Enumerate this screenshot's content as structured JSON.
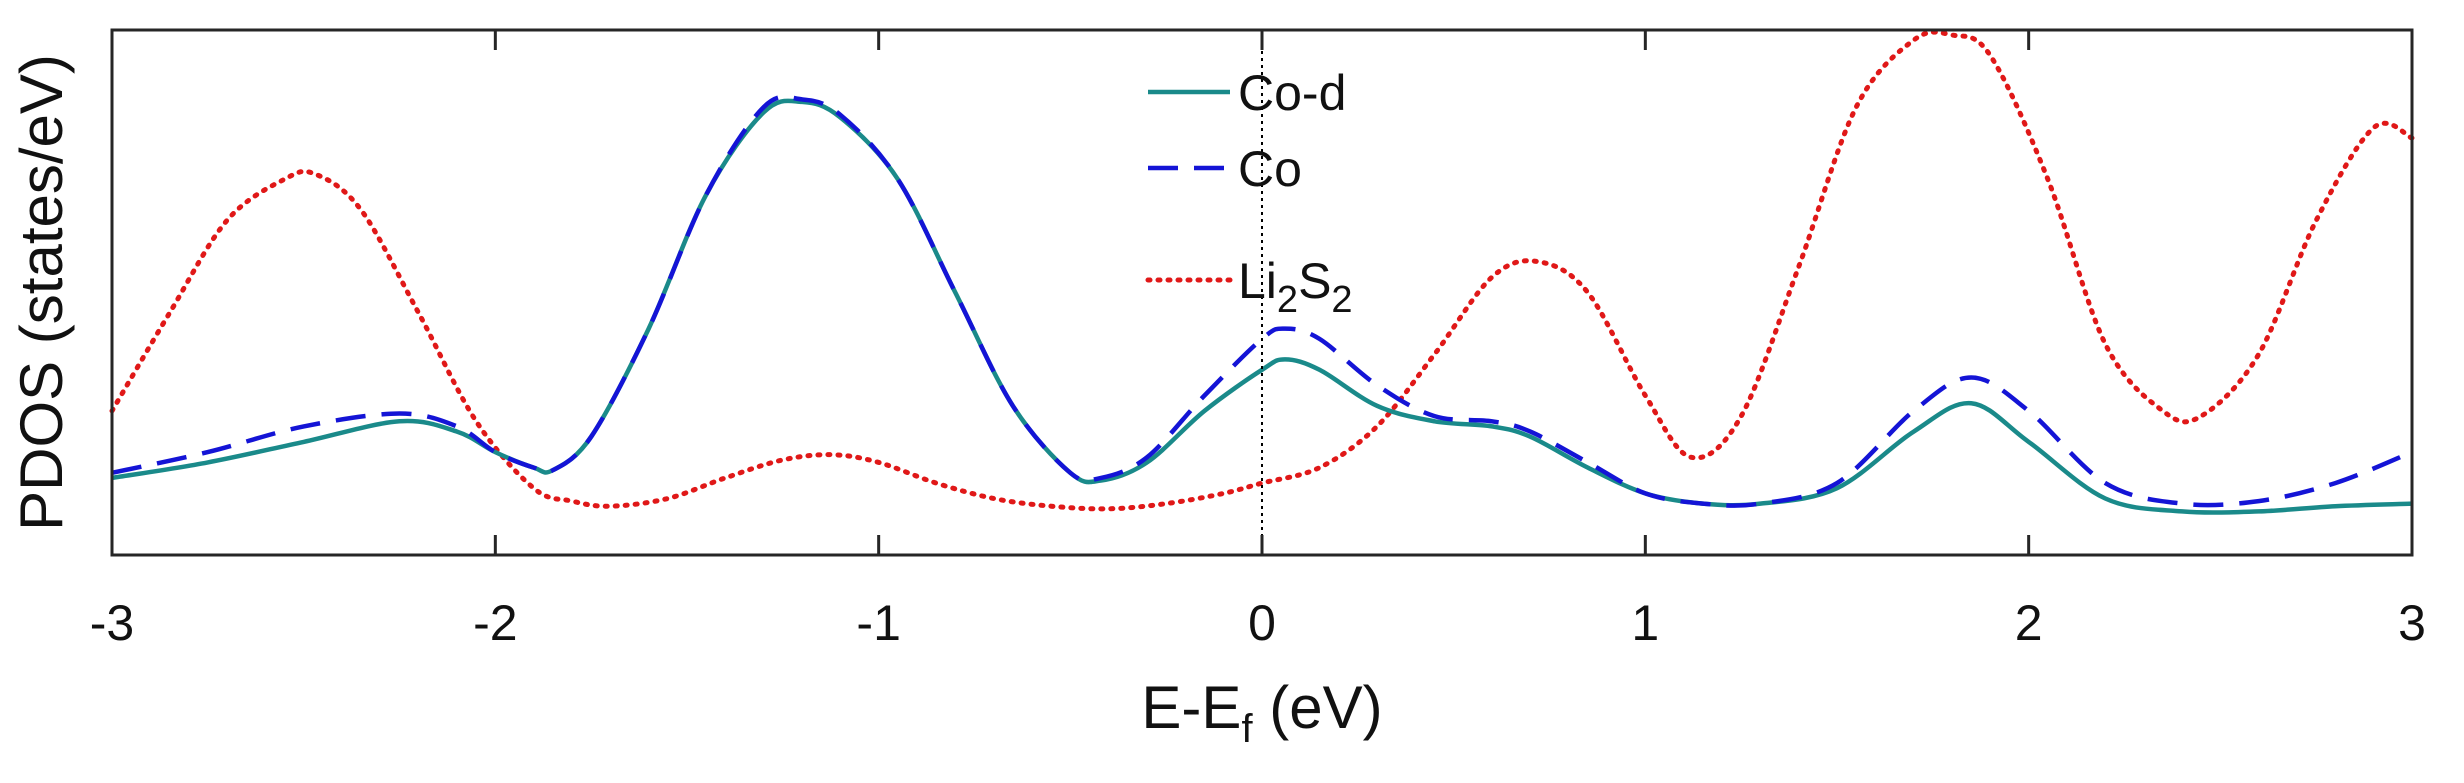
{
  "chart_data": {
    "type": "line",
    "title": "",
    "xlabel": {
      "main": "E-E",
      "sub": "f",
      "suffix": " (eV)"
    },
    "ylabel": "PDOS (states/eV)",
    "xlim": [
      -3,
      3
    ],
    "ylim": [
      0,
      1
    ],
    "yticks_shown": false,
    "grid": false,
    "legend_position": "top-center",
    "xticks": [
      -3,
      -2,
      -1,
      0,
      1,
      2,
      3
    ],
    "xtick_labels": [
      "-3",
      "-2",
      "-1",
      "0",
      "1",
      "2",
      "3"
    ],
    "fermi_line_x": 0,
    "series": [
      {
        "name": "Co-d",
        "legend": {
          "parts": [
            {
              "t": "Co-d",
              "sub": false
            }
          ]
        },
        "color": "#1a8a8a",
        "style": "solid",
        "x": [
          -3.0,
          -2.75,
          -2.5,
          -2.25,
          -2.1,
          -2.0,
          -1.9,
          -1.85,
          -1.75,
          -1.6,
          -1.45,
          -1.3,
          -1.2,
          -1.1,
          -0.95,
          -0.8,
          -0.65,
          -0.5,
          -0.42,
          -0.3,
          -0.15,
          0.0,
          0.06,
          0.15,
          0.3,
          0.45,
          0.6,
          0.7,
          0.85,
          1.0,
          1.15,
          1.3,
          1.5,
          1.7,
          1.85,
          2.0,
          2.2,
          2.4,
          2.6,
          2.8,
          3.0
        ],
        "values": [
          0.14,
          0.17,
          0.21,
          0.25,
          0.23,
          0.19,
          0.16,
          0.155,
          0.22,
          0.43,
          0.69,
          0.85,
          0.87,
          0.84,
          0.72,
          0.5,
          0.28,
          0.15,
          0.135,
          0.17,
          0.27,
          0.35,
          0.37,
          0.35,
          0.28,
          0.25,
          0.24,
          0.22,
          0.16,
          0.11,
          0.09,
          0.09,
          0.12,
          0.23,
          0.285,
          0.21,
          0.1,
          0.075,
          0.075,
          0.085,
          0.09
        ]
      },
      {
        "name": "Co",
        "legend": {
          "parts": [
            {
              "t": "Co",
              "sub": false
            }
          ]
        },
        "color": "#1414d6",
        "style": "dashed",
        "x": [
          -3.0,
          -2.75,
          -2.5,
          -2.25,
          -2.1,
          -2.0,
          -1.9,
          -1.85,
          -1.75,
          -1.6,
          -1.45,
          -1.3,
          -1.2,
          -1.1,
          -0.95,
          -0.8,
          -0.65,
          -0.5,
          -0.42,
          -0.3,
          -0.15,
          0.0,
          0.06,
          0.15,
          0.3,
          0.45,
          0.6,
          0.7,
          0.85,
          1.0,
          1.15,
          1.3,
          1.5,
          1.7,
          1.85,
          2.0,
          2.2,
          2.4,
          2.6,
          2.8,
          3.0
        ],
        "values": [
          0.15,
          0.19,
          0.24,
          0.265,
          0.24,
          0.19,
          0.16,
          0.155,
          0.22,
          0.43,
          0.69,
          0.86,
          0.875,
          0.845,
          0.72,
          0.5,
          0.28,
          0.15,
          0.14,
          0.18,
          0.3,
          0.41,
          0.43,
          0.41,
          0.32,
          0.26,
          0.25,
          0.23,
          0.17,
          0.11,
          0.09,
          0.09,
          0.13,
          0.27,
          0.335,
          0.27,
          0.13,
          0.09,
          0.095,
          0.13,
          0.19
        ]
      },
      {
        "name": "Li2S2",
        "legend": {
          "parts": [
            {
              "t": "Li",
              "sub": false
            },
            {
              "t": "2",
              "sub": true
            },
            {
              "t": "S",
              "sub": false
            },
            {
              "t": "2",
              "sub": true
            }
          ]
        },
        "color": "#e01818",
        "style": "dotted",
        "x": [
          -3.0,
          -2.85,
          -2.7,
          -2.55,
          -2.47,
          -2.35,
          -2.2,
          -2.05,
          -1.9,
          -1.8,
          -1.7,
          -1.55,
          -1.4,
          -1.25,
          -1.12,
          -1.0,
          -0.85,
          -0.7,
          -0.55,
          -0.4,
          -0.25,
          -0.1,
          0.0,
          0.15,
          0.3,
          0.45,
          0.6,
          0.72,
          0.85,
          1.0,
          1.12,
          1.25,
          1.4,
          1.55,
          1.7,
          1.8,
          1.9,
          2.05,
          2.2,
          2.35,
          2.45,
          2.6,
          2.75,
          2.9,
          3.0
        ],
        "values": [
          0.27,
          0.46,
          0.64,
          0.72,
          0.73,
          0.66,
          0.46,
          0.25,
          0.12,
          0.095,
          0.085,
          0.1,
          0.14,
          0.175,
          0.185,
          0.17,
          0.13,
          0.1,
          0.085,
          0.08,
          0.09,
          0.11,
          0.13,
          0.16,
          0.24,
          0.38,
          0.53,
          0.56,
          0.5,
          0.3,
          0.18,
          0.26,
          0.55,
          0.86,
          0.99,
          1.0,
          0.96,
          0.72,
          0.4,
          0.27,
          0.26,
          0.38,
          0.64,
          0.82,
          0.8
        ]
      }
    ]
  }
}
